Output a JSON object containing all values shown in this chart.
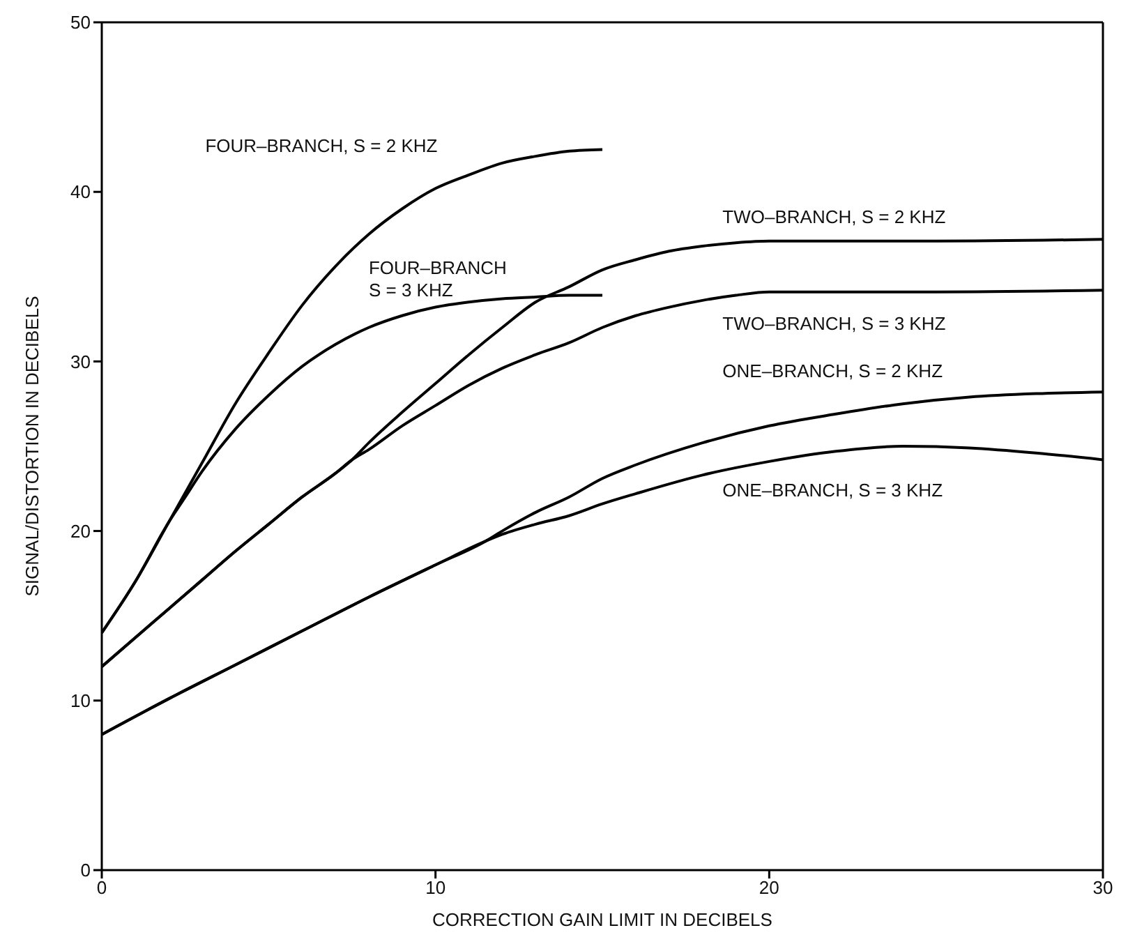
{
  "chart_data": {
    "type": "line",
    "xlabel": "CORRECTION GAIN LIMIT IN DECIBELS",
    "ylabel": "SIGNAL/DISTORTION IN DECIBELS",
    "xlim": [
      0,
      30
    ],
    "xticks": [
      0,
      10,
      20,
      30
    ],
    "ylim": [
      0,
      50
    ],
    "yticks": [
      0,
      10,
      20,
      30,
      40,
      50
    ],
    "legend": false,
    "marker": "none",
    "line_style": "solid",
    "series": [
      {
        "name": "FOUR–BRANCH, S = 2 KHZ",
        "color": "#000000",
        "x": [
          0,
          1,
          2,
          3,
          4,
          5,
          6,
          7,
          8,
          9,
          10,
          11,
          12,
          13,
          14,
          15
        ],
        "values": [
          14,
          17,
          20.5,
          24,
          27.5,
          30.5,
          33.3,
          35.6,
          37.5,
          39,
          40.2,
          41,
          41.7,
          42.1,
          42.4,
          42.5
        ]
      },
      {
        "name": "FOUR–BRANCH\nS = 3 KHZ",
        "color": "#000000",
        "x": [
          0,
          1,
          2,
          2.5,
          3,
          4,
          5,
          6,
          7,
          8,
          9,
          10,
          11,
          12,
          13,
          14,
          15
        ],
        "values": [
          14,
          17,
          20.5,
          22,
          23.5,
          26,
          28,
          29.7,
          31,
          32,
          32.7,
          33.2,
          33.5,
          33.7,
          33.8,
          33.9,
          33.9
        ]
      },
      {
        "name": "TWO–BRANCH, S = 2 KHZ",
        "color": "#000000",
        "x": [
          0,
          1,
          2,
          3,
          4,
          5,
          6,
          7,
          7.5,
          8,
          9,
          10,
          11,
          12,
          13,
          14,
          15,
          16,
          17,
          18,
          19,
          20,
          25,
          30
        ],
        "values": [
          12,
          13.7,
          15.4,
          17.1,
          18.8,
          20.4,
          22,
          23.4,
          24.2,
          25.2,
          27,
          28.7,
          30.4,
          32,
          33.5,
          34.4,
          35.4,
          36,
          36.5,
          36.8,
          37,
          37.1,
          37.1,
          37.2
        ]
      },
      {
        "name": "TWO–BRANCH, S = 3 KHZ",
        "color": "#000000",
        "x": [
          0,
          1,
          2,
          3,
          4,
          5,
          6,
          7,
          7.5,
          8,
          9,
          10,
          11,
          12,
          13,
          14,
          15,
          16,
          17,
          18,
          19,
          20,
          25,
          30
        ],
        "values": [
          12,
          13.7,
          15.4,
          17.1,
          18.8,
          20.4,
          22,
          23.4,
          24.2,
          24.8,
          26.2,
          27.4,
          28.6,
          29.6,
          30.4,
          31.1,
          32,
          32.7,
          33.2,
          33.6,
          33.9,
          34.1,
          34.1,
          34.2
        ]
      },
      {
        "name": "ONE–BRANCH, S = 2 KHZ",
        "color": "#000000",
        "x": [
          0,
          2,
          4,
          6,
          8,
          10,
          11.5,
          12,
          13,
          14,
          15,
          16,
          18,
          20,
          22,
          24,
          26,
          28,
          30
        ],
        "values": [
          8,
          10.1,
          12.1,
          14.1,
          16.1,
          18,
          19.4,
          20,
          21.1,
          22,
          23.1,
          23.9,
          25.2,
          26.2,
          26.9,
          27.5,
          27.9,
          28.1,
          28.2
        ]
      },
      {
        "name": "ONE–BRANCH, S = 3 KHZ",
        "color": "#000000",
        "x": [
          0,
          2,
          4,
          6,
          8,
          10,
          11.5,
          12,
          13,
          14,
          15,
          16,
          18,
          20,
          22,
          24,
          26,
          28,
          30
        ],
        "values": [
          8,
          10.1,
          12.1,
          14.1,
          16.1,
          18,
          19.4,
          19.8,
          20.4,
          20.9,
          21.6,
          22.2,
          23.3,
          24.1,
          24.7,
          25,
          24.9,
          24.6,
          24.2
        ]
      }
    ]
  }
}
